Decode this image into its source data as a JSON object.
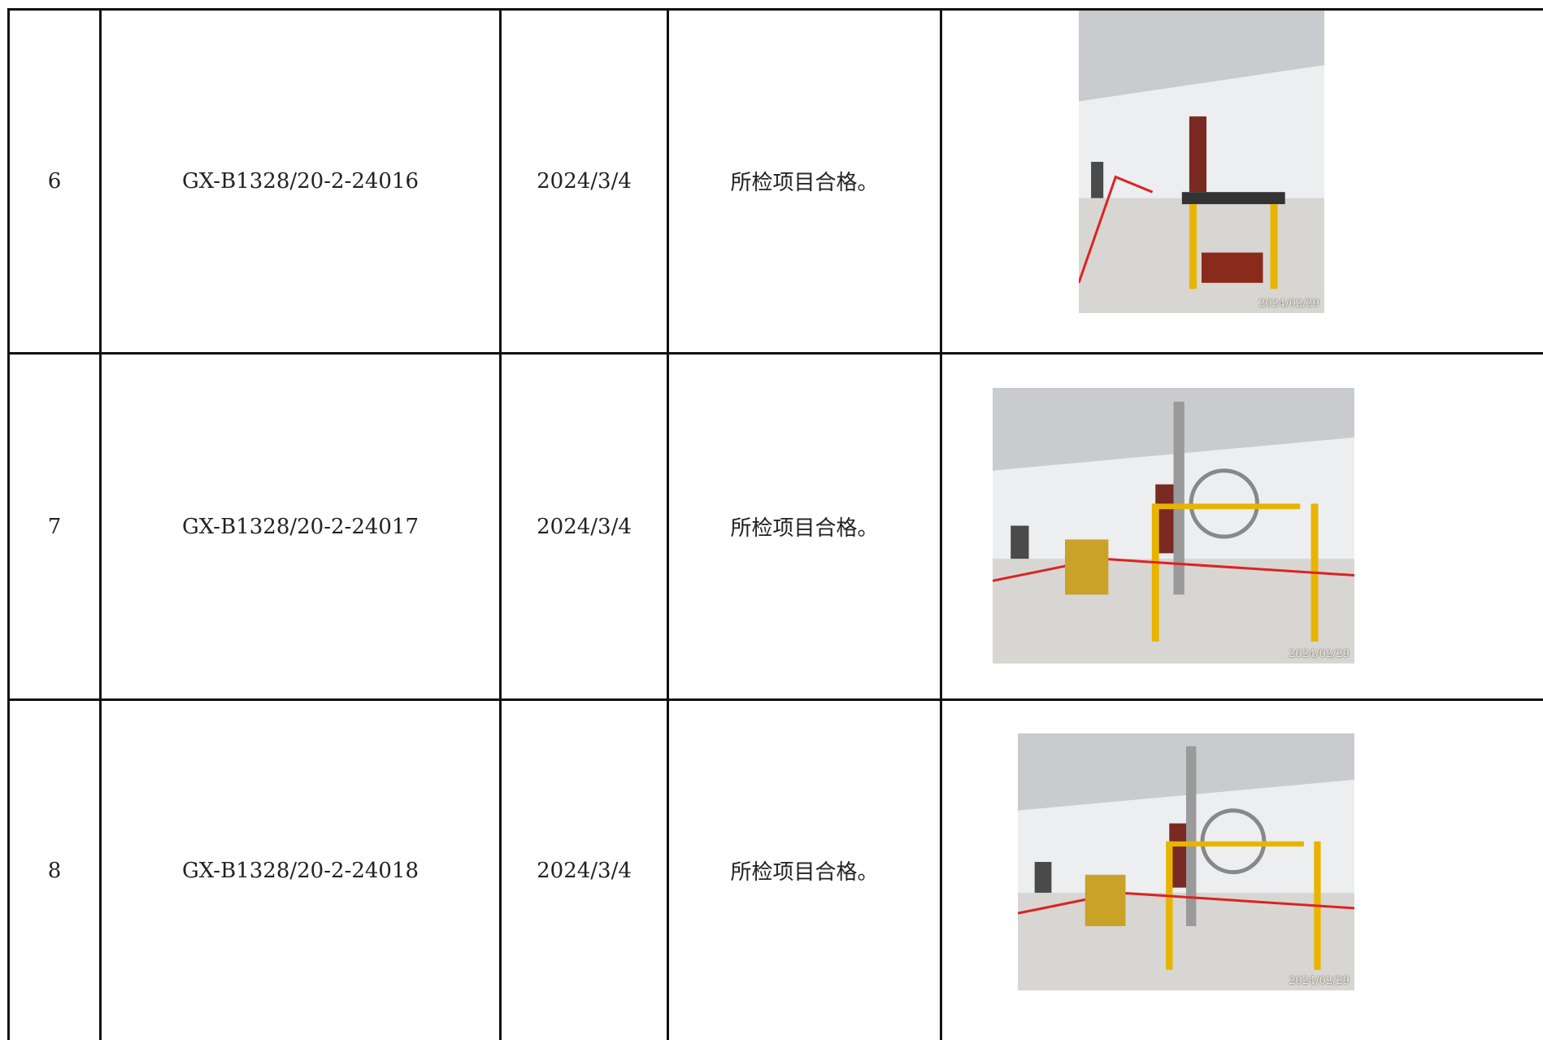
{
  "table": {
    "rows": [
      {
        "no": "6",
        "code": "GX-B1328/20-2-24016",
        "date": "2024/3/4",
        "result": "所检项目合格。",
        "photo_stamp": "2024/02/29"
      },
      {
        "no": "7",
        "code": "GX-B1328/20-2-24017",
        "date": "2024/3/4",
        "result": "所检项目合格。",
        "photo_stamp": "2024/02/29"
      },
      {
        "no": "8",
        "code": "GX-B1328/20-2-24018",
        "date": "2024/3/4",
        "result": "所检项目合格。",
        "photo_stamp": "2024/02/29"
      }
    ]
  }
}
